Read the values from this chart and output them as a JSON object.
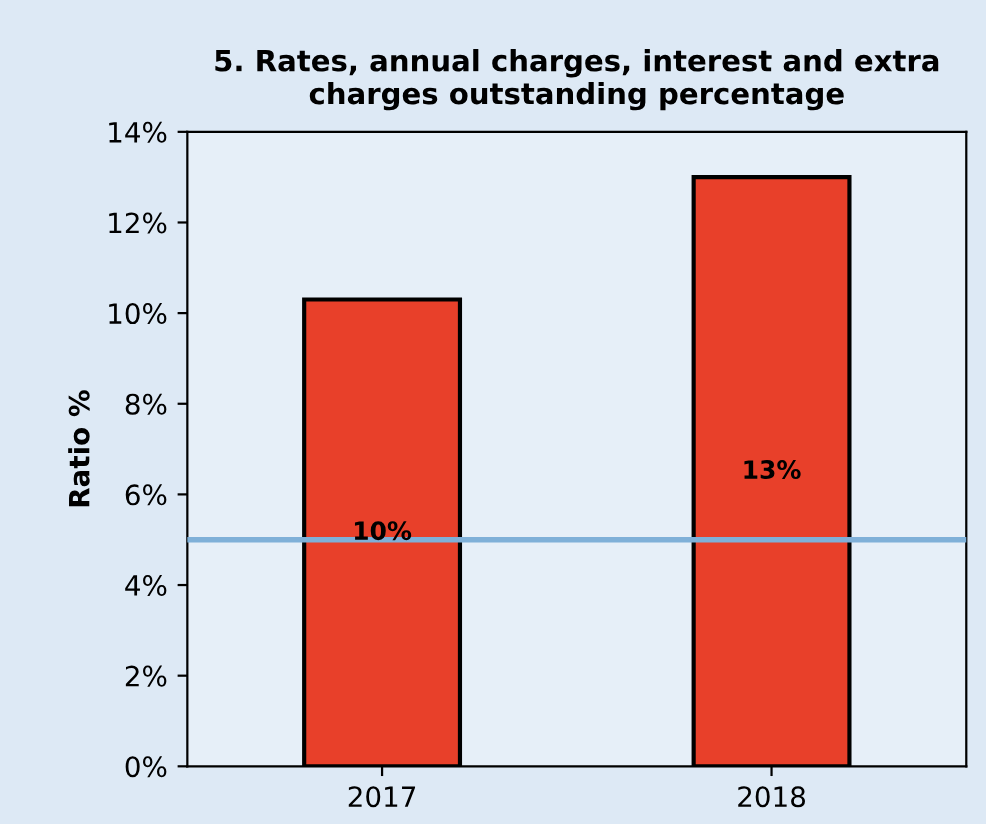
{
  "chart_data": {
    "type": "bar",
    "title": "5. Rates, annual charges, interest and extra\ncharges outstanding percentage",
    "ylabel": "Ratio %",
    "categories": [
      "2017",
      "2018"
    ],
    "series": [
      {
        "color": "#e8402a",
        "values": [
          10.3,
          13.0
        ]
      }
    ],
    "value_labels": [
      "10%",
      "13%"
    ],
    "ylim": [
      0,
      14
    ],
    "yticks": [
      {
        "value": 0,
        "label": "0%"
      },
      {
        "value": 2,
        "label": "2%"
      },
      {
        "value": 4,
        "label": "4%"
      },
      {
        "value": 6,
        "label": "6%"
      },
      {
        "value": 8,
        "label": "8%"
      },
      {
        "value": 10,
        "label": "10%"
      },
      {
        "value": 12,
        "label": "12%"
      },
      {
        "value": 14,
        "label": "14%"
      }
    ],
    "ref_lines": [
      {
        "axis": "y",
        "value": 5,
        "color": "#7fb0d8"
      }
    ],
    "grid": false,
    "legend": false
  }
}
